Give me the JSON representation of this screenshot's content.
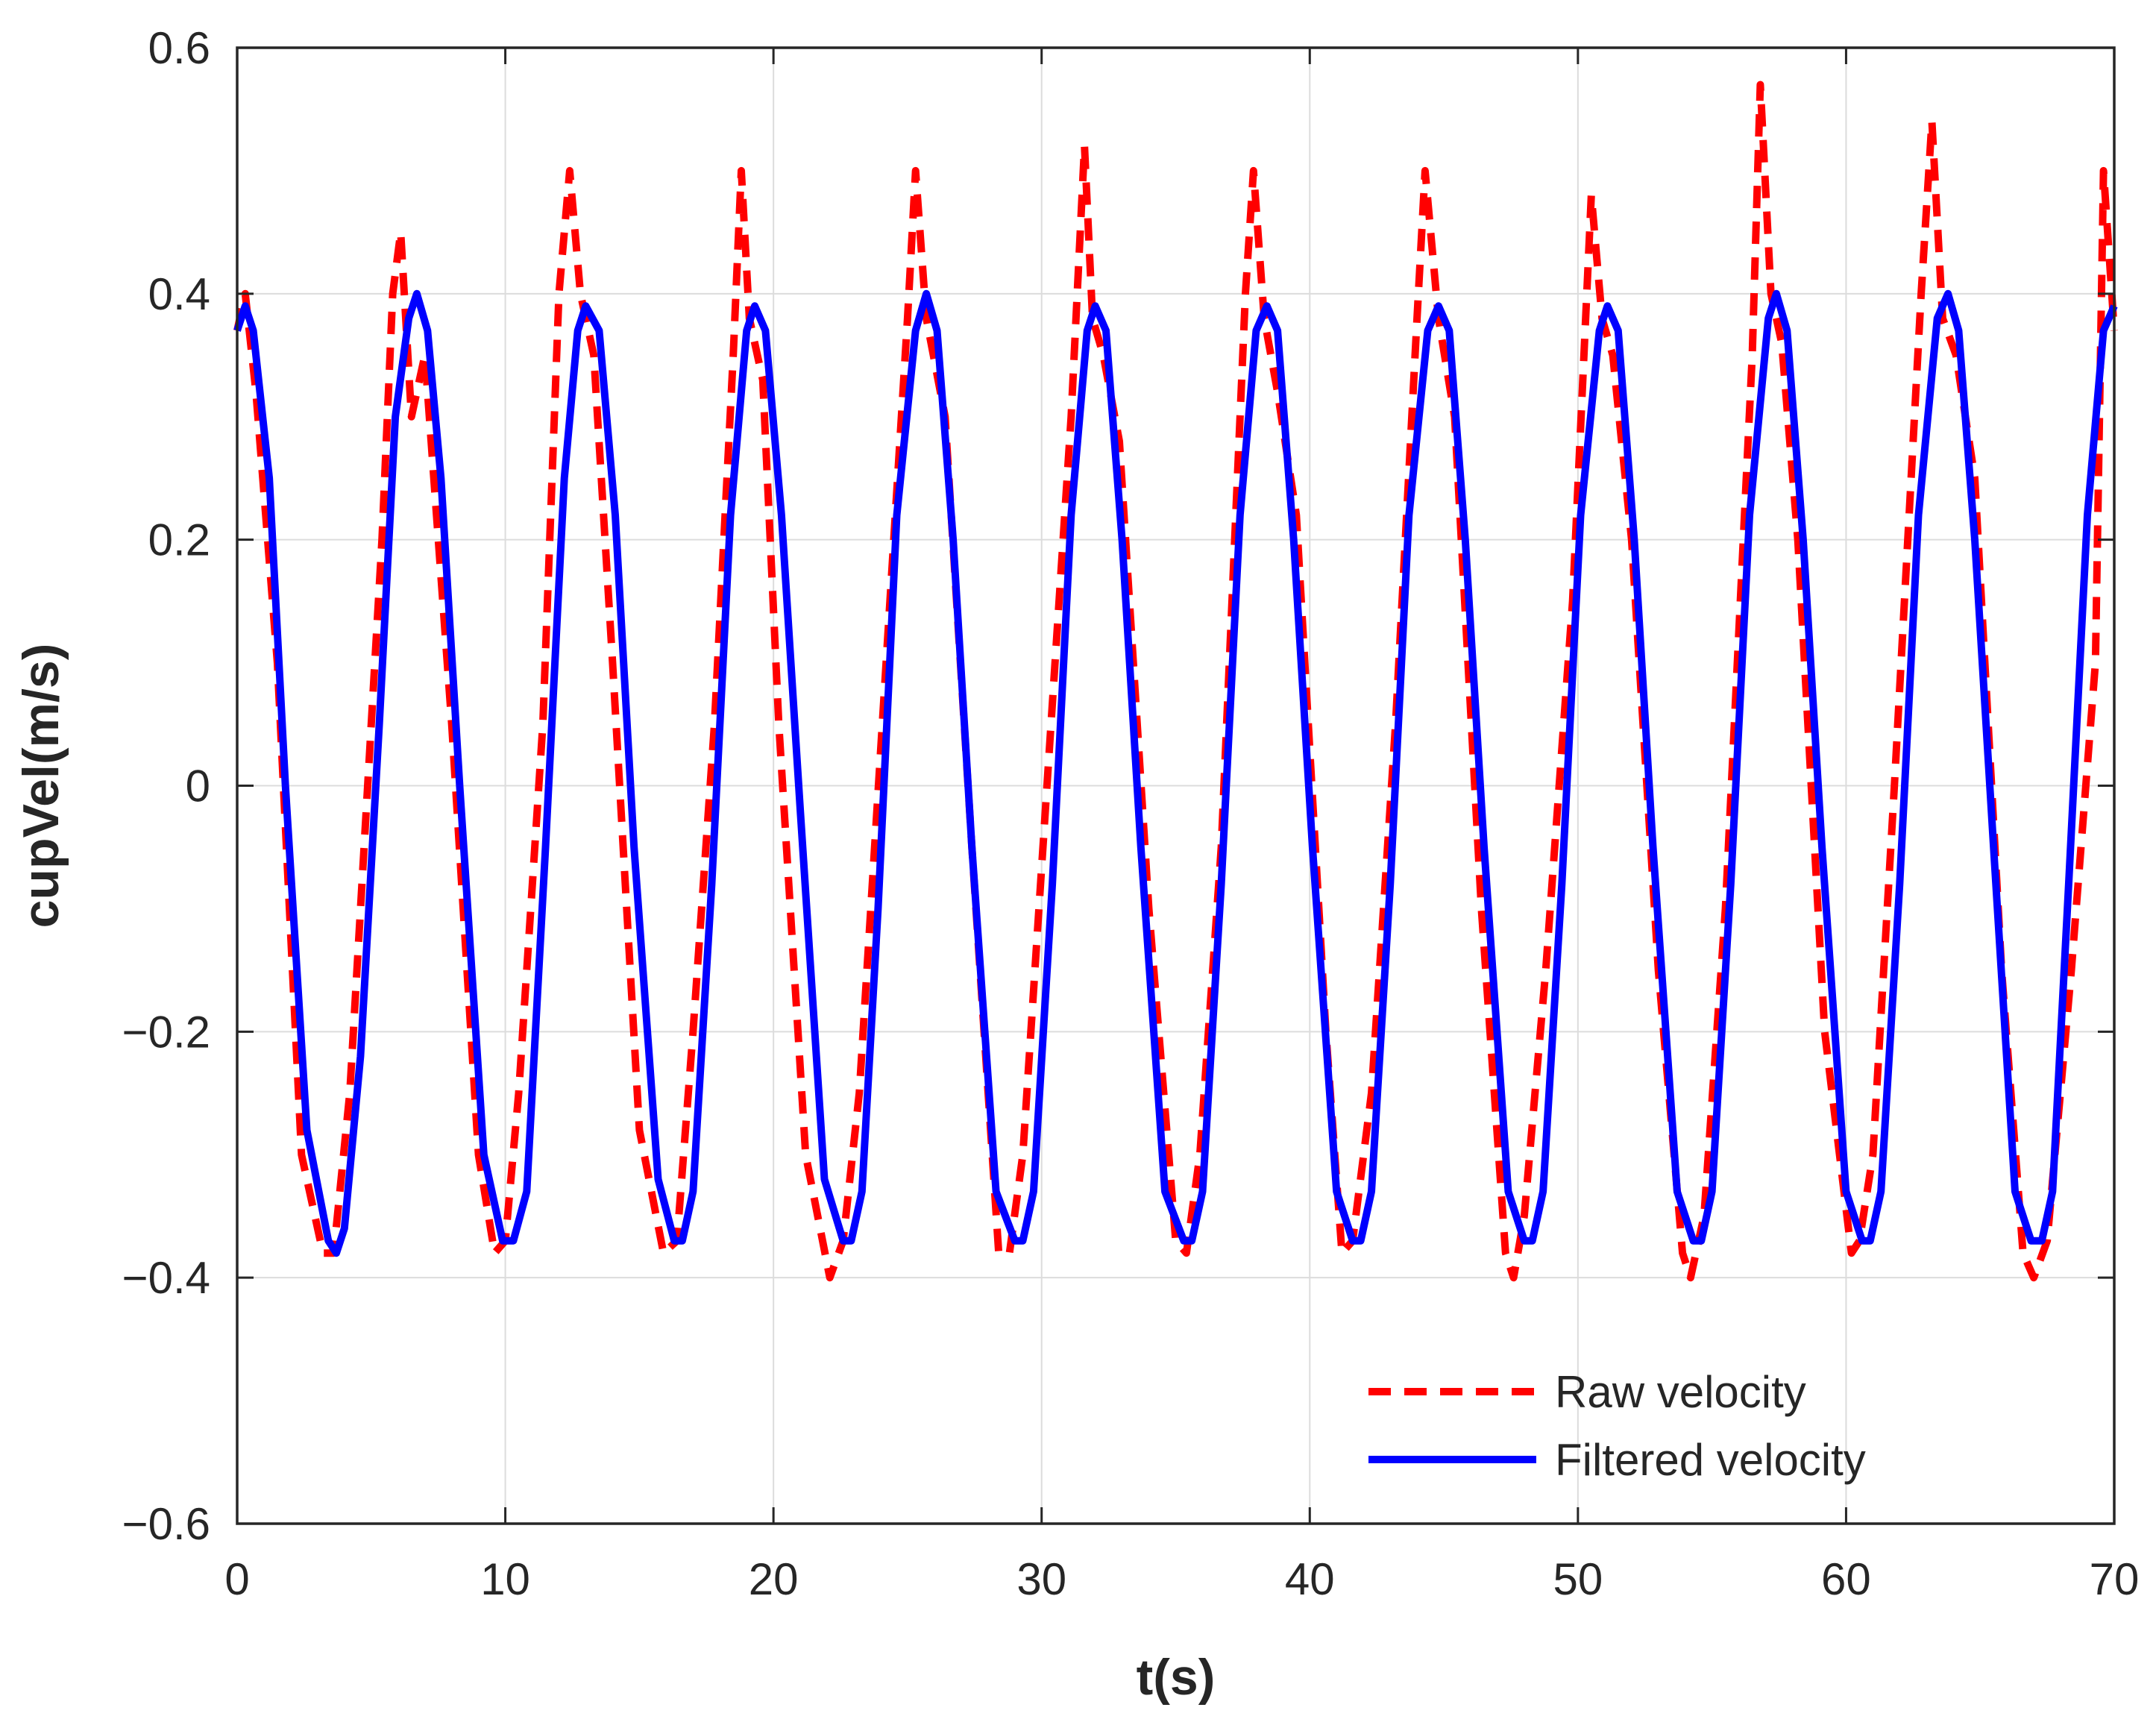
{
  "chart_data": {
    "type": "line",
    "title": "",
    "xlabel": "t(s)",
    "ylabel": "cupVel(m/s)",
    "xlim": [
      0,
      70
    ],
    "ylim": [
      -0.6,
      0.6
    ],
    "xticks": [
      0,
      10,
      20,
      30,
      40,
      50,
      60,
      70
    ],
    "xtick_labels": [
      "0",
      "10",
      "20",
      "30",
      "40",
      "50",
      "60",
      "70"
    ],
    "yticks": [
      -0.6,
      -0.4,
      -0.2,
      0,
      0.2,
      0.4,
      0.6
    ],
    "ytick_labels": [
      "−0.6",
      "−0.4",
      "−0.2",
      "0",
      "0.2",
      "0.4",
      "0.6"
    ],
    "grid": true,
    "legend_position": "bottom-right",
    "series": [
      {
        "name": "Raw velocity",
        "color": "#ff0000",
        "style": "dashed",
        "x": [
          0,
          0.3,
          0.7,
          1.5,
          2.4,
          3.2,
          3.6,
          4.2,
          5.0,
          5.4,
          5.8,
          6.1,
          6.5,
          7.0,
          8.0,
          9.0,
          9.6,
          10.0,
          10.5,
          11.4,
          12.0,
          12.4,
          12.8,
          13.3,
          14.0,
          15.0,
          15.9,
          16.4,
          17.0,
          17.8,
          18.5,
          18.8,
          19.1,
          19.6,
          20.2,
          21.2,
          22.1,
          22.6,
          23.2,
          24.2,
          25.0,
          25.3,
          25.7,
          26.4,
          27.4,
          28.4,
          28.8,
          29.3,
          30.2,
          31.1,
          31.6,
          31.9,
          32.3,
          32.9,
          34.0,
          35.0,
          35.4,
          35.9,
          36.7,
          37.6,
          37.9,
          38.3,
          38.8,
          39.5,
          40.6,
          41.2,
          41.6,
          42.3,
          43.2,
          44.0,
          44.3,
          44.8,
          45.4,
          46.4,
          47.3,
          47.6,
          48.0,
          48.8,
          49.8,
          50.5,
          50.9,
          51.3,
          52.0,
          53.0,
          53.9,
          54.2,
          54.7,
          55.5,
          56.5,
          56.8,
          57.2,
          57.6,
          58.2,
          59.2,
          60.2,
          60.5,
          61.0,
          61.8,
          62.8,
          63.2,
          63.6,
          64.1,
          64.8,
          65.8,
          66.6,
          67.0,
          67.5,
          68.4,
          69.3,
          69.6,
          70.0
        ],
        "y": [
          0.37,
          0.4,
          0.32,
          0.1,
          -0.3,
          -0.38,
          -0.38,
          -0.25,
          0.05,
          0.2,
          0.4,
          0.45,
          0.3,
          0.35,
          0.05,
          -0.3,
          -0.38,
          -0.37,
          -0.25,
          0.05,
          0.4,
          0.5,
          0.4,
          0.35,
          0.1,
          -0.28,
          -0.38,
          -0.37,
          -0.2,
          0.05,
          0.35,
          0.5,
          0.38,
          0.33,
          0.05,
          -0.3,
          -0.4,
          -0.37,
          -0.25,
          0.1,
          0.38,
          0.5,
          0.38,
          0.3,
          -0.05,
          -0.38,
          -0.38,
          -0.3,
          0.0,
          0.3,
          0.52,
          0.38,
          0.35,
          0.28,
          -0.1,
          -0.37,
          -0.38,
          -0.3,
          -0.05,
          0.4,
          0.5,
          0.38,
          0.32,
          0.22,
          -0.2,
          -0.38,
          -0.37,
          -0.25,
          0.05,
          0.38,
          0.5,
          0.38,
          0.3,
          -0.1,
          -0.38,
          -0.4,
          -0.35,
          -0.15,
          0.15,
          0.48,
          0.38,
          0.35,
          0.2,
          -0.15,
          -0.38,
          -0.4,
          -0.35,
          -0.1,
          0.35,
          0.57,
          0.4,
          0.36,
          0.2,
          -0.2,
          -0.38,
          -0.37,
          -0.3,
          0.0,
          0.4,
          0.54,
          0.38,
          0.35,
          0.25,
          -0.15,
          -0.38,
          -0.4,
          -0.37,
          -0.15,
          0.1,
          0.5,
          0.37
        ]
      },
      {
        "name": "Filtered velocity",
        "color": "#0000ff",
        "style": "solid",
        "x": [
          0,
          0.3,
          0.6,
          1.2,
          1.8,
          2.6,
          3.4,
          3.7,
          4.0,
          4.6,
          5.3,
          5.9,
          6.4,
          6.7,
          7.1,
          7.6,
          8.3,
          9.2,
          9.9,
          10.3,
          10.8,
          11.5,
          12.2,
          12.7,
          13.0,
          13.5,
          14.1,
          14.8,
          15.7,
          16.3,
          16.6,
          17.0,
          17.7,
          18.4,
          19.0,
          19.3,
          19.7,
          20.3,
          21.0,
          21.9,
          22.6,
          22.9,
          23.3,
          23.9,
          24.6,
          25.3,
          25.7,
          26.1,
          26.7,
          27.4,
          28.3,
          29.0,
          29.3,
          29.7,
          30.4,
          31.1,
          31.7,
          32.0,
          32.4,
          33.0,
          33.7,
          34.6,
          35.3,
          35.6,
          36.0,
          36.7,
          37.4,
          38.0,
          38.4,
          38.8,
          39.4,
          40.1,
          41.0,
          41.6,
          41.9,
          42.3,
          43.0,
          43.7,
          44.4,
          44.8,
          45.2,
          45.8,
          46.5,
          47.4,
          48.0,
          48.3,
          48.7,
          49.4,
          50.1,
          50.8,
          51.1,
          51.5,
          52.1,
          52.8,
          53.7,
          54.3,
          54.6,
          55.0,
          55.7,
          56.4,
          57.1,
          57.4,
          57.8,
          58.4,
          59.1,
          60.0,
          60.6,
          60.9,
          61.3,
          62.0,
          62.7,
          63.4,
          63.8,
          64.2,
          64.8,
          65.5,
          66.3,
          66.9,
          67.3,
          67.7,
          68.3,
          69.0,
          69.6,
          70.0
        ],
        "y": [
          0.37,
          0.39,
          0.37,
          0.25,
          0.0,
          -0.28,
          -0.37,
          -0.38,
          -0.36,
          -0.22,
          0.05,
          0.3,
          0.38,
          0.4,
          0.37,
          0.25,
          0.0,
          -0.3,
          -0.37,
          -0.37,
          -0.33,
          -0.05,
          0.25,
          0.37,
          0.39,
          0.37,
          0.22,
          -0.05,
          -0.32,
          -0.37,
          -0.37,
          -0.33,
          -0.08,
          0.22,
          0.37,
          0.39,
          0.37,
          0.22,
          -0.02,
          -0.32,
          -0.37,
          -0.37,
          -0.33,
          -0.1,
          0.22,
          0.37,
          0.4,
          0.37,
          0.2,
          -0.05,
          -0.33,
          -0.37,
          -0.37,
          -0.33,
          -0.08,
          0.22,
          0.37,
          0.39,
          0.37,
          0.2,
          -0.05,
          -0.33,
          -0.37,
          -0.37,
          -0.33,
          -0.08,
          0.22,
          0.37,
          0.39,
          0.37,
          0.2,
          -0.05,
          -0.33,
          -0.37,
          -0.37,
          -0.33,
          -0.08,
          0.22,
          0.37,
          0.39,
          0.37,
          0.2,
          -0.05,
          -0.33,
          -0.37,
          -0.37,
          -0.33,
          -0.08,
          0.22,
          0.37,
          0.39,
          0.37,
          0.2,
          -0.05,
          -0.33,
          -0.37,
          -0.37,
          -0.33,
          -0.08,
          0.22,
          0.38,
          0.4,
          0.37,
          0.2,
          -0.05,
          -0.33,
          -0.37,
          -0.37,
          -0.33,
          -0.08,
          0.22,
          0.38,
          0.4,
          0.37,
          0.2,
          -0.05,
          -0.33,
          -0.37,
          -0.37,
          -0.33,
          -0.08,
          0.22,
          0.37,
          0.39
        ]
      }
    ]
  }
}
